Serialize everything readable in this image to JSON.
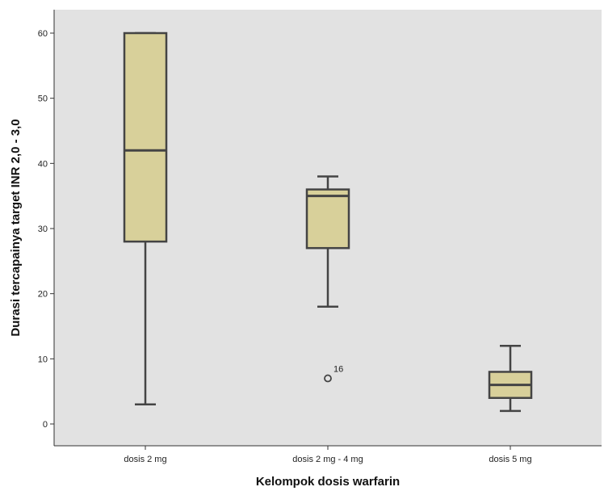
{
  "chart_data": {
    "type": "boxplot",
    "title": "",
    "xlabel": "Kelompok dosis warfarin",
    "ylabel": "Durasi tercapainya target INR 2,0 - 3,0",
    "ylim": [
      -3,
      64
    ],
    "yticks": [
      0,
      10,
      20,
      30,
      40,
      50,
      60
    ],
    "grid": false,
    "categories": [
      "dosis 2 mg",
      "dosis 2 mg - 4 mg",
      "dosis 5 mg"
    ],
    "boxes": [
      {
        "category": "dosis 2 mg",
        "min": 3,
        "q1": 28,
        "median": 42,
        "q3": 60,
        "max": 60,
        "outliers": []
      },
      {
        "category": "dosis 2 mg - 4 mg",
        "min": 18,
        "q1": 27,
        "median": 35,
        "q3": 36,
        "max": 38,
        "outliers": [
          {
            "value": 7,
            "label": "16"
          }
        ]
      },
      {
        "category": "dosis 5 mg",
        "min": 2,
        "q1": 4,
        "median": 6,
        "q3": 8,
        "max": 12,
        "outliers": []
      }
    ],
    "colors": {
      "plot_background": "#e2e2e2",
      "box_fill": "#d8d09a",
      "stroke": "#444444"
    }
  }
}
